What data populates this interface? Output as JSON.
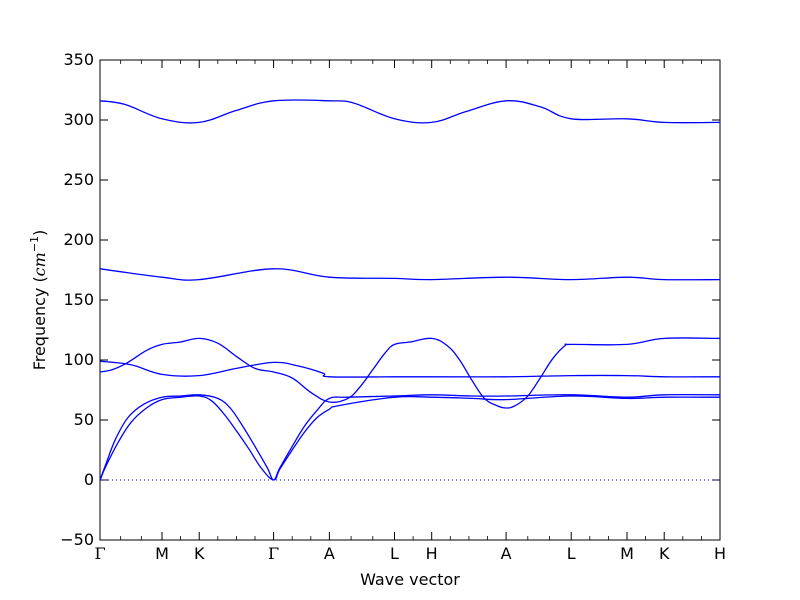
{
  "chart_data": {
    "type": "line",
    "title": "",
    "xlabel": "Wave vector",
    "ylabel": "Frequency (cm⁻¹)",
    "ylabel_parts": {
      "text": "Frequency (",
      "unit_base": "cm",
      "unit_exp": "−1",
      "close": ")"
    },
    "ylim": [
      -50,
      350
    ],
    "yticks": [
      -50,
      0,
      50,
      100,
      150,
      200,
      250,
      300,
      350
    ],
    "xlim": [
      0,
      10
    ],
    "kpoints": [
      {
        "label": "Γ",
        "x": 0
      },
      {
        "label": "M",
        "x": 1
      },
      {
        "label": "K",
        "x": 1.6
      },
      {
        "label": "Γ",
        "x": 2.8
      },
      {
        "label": "A",
        "x": 3.7
      },
      {
        "label": "L",
        "x": 4.75
      },
      {
        "label": "H",
        "x": 5.35
      },
      {
        "label": "A",
        "x": 6.55
      },
      {
        "label": "L",
        "x": 7.6
      },
      {
        "label": "M",
        "x": 8.5
      },
      {
        "label": "K",
        "x": 9.1
      },
      {
        "label": "H",
        "x": 10
      }
    ],
    "zero_line": true,
    "line_color": "#0000ff",
    "series": [
      {
        "x": [
          0,
          0.4,
          1.0,
          1.6,
          2.2,
          2.8,
          3.7,
          4.1,
          4.75,
          5.35,
          5.9,
          6.55,
          7.1,
          7.6,
          8.5,
          9.1,
          10
        ],
        "y": [
          316,
          313,
          301,
          298,
          308,
          316,
          316,
          314,
          301,
          298,
          307,
          316,
          311,
          301,
          301,
          298,
          298
        ]
      },
      {
        "x": [
          0,
          1.0,
          1.6,
          2.8,
          3.7,
          4.75,
          5.35,
          6.55,
          7.6,
          8.5,
          9.1,
          10
        ],
        "y": [
          176,
          169,
          167,
          176,
          169,
          168,
          167,
          169,
          167,
          169,
          167,
          167
        ]
      },
      {
        "x": [
          0,
          0.2,
          0.45,
          0.75,
          1.0,
          1.3,
          1.6,
          1.9,
          2.2,
          2.5,
          2.8,
          3.1,
          3.4,
          3.7,
          4.0,
          4.2,
          4.4,
          4.6,
          4.75,
          5.0,
          5.35,
          5.6,
          5.8,
          6.0,
          6.2,
          6.4,
          6.55,
          6.7,
          6.9,
          7.1,
          7.3,
          7.5,
          7.6,
          8.5,
          9.1,
          10
        ],
        "y": [
          90,
          92,
          98,
          108,
          113,
          115,
          118,
          114,
          103,
          93,
          90,
          85,
          73,
          65,
          68,
          78,
          92,
          106,
          113,
          115,
          118,
          112,
          100,
          83,
          68,
          62,
          60,
          62,
          70,
          85,
          101,
          112,
          113,
          113,
          118,
          118
        ]
      },
      {
        "x": [
          0,
          0.5,
          1.0,
          1.6,
          2.2,
          2.8,
          3.2,
          3.6,
          3.7,
          4.75,
          5.35,
          6.55,
          7.6,
          8.5,
          9.1,
          10
        ],
        "y": [
          99,
          96,
          88,
          87,
          93,
          98,
          95,
          89,
          86,
          86,
          86,
          86,
          87,
          87,
          86,
          86
        ]
      },
      {
        "x": [
          0,
          0.1,
          0.25,
          0.45,
          0.7,
          1.0,
          1.3,
          1.6,
          1.9,
          2.1,
          2.3,
          2.5,
          2.7,
          2.8,
          2.9,
          3.1,
          3.3,
          3.5,
          3.7,
          4.0,
          4.75,
          5.35,
          6.0,
          6.55,
          7.6,
          8.5,
          9.1,
          10
        ],
        "y": [
          0,
          14,
          34,
          52,
          63,
          69,
          70,
          71,
          68,
          60,
          45,
          28,
          10,
          0,
          10,
          28,
          45,
          58,
          68,
          69,
          70,
          71,
          70,
          70,
          71,
          69,
          71,
          71
        ]
      },
      {
        "x": [
          0,
          0.1,
          0.3,
          0.5,
          0.75,
          1.0,
          1.3,
          1.6,
          1.8,
          2.0,
          2.2,
          2.4,
          2.6,
          2.8,
          2.9,
          3.1,
          3.3,
          3.5,
          3.7,
          3.85,
          4.75,
          5.35,
          6.0,
          6.55,
          7.6,
          8.5,
          9.1,
          10
        ],
        "y": [
          0,
          12,
          32,
          48,
          60,
          67,
          69,
          70,
          66,
          55,
          41,
          26,
          10,
          0,
          9,
          25,
          40,
          52,
          59,
          62,
          69,
          69,
          68,
          67,
          70,
          68,
          69,
          69
        ]
      }
    ]
  }
}
